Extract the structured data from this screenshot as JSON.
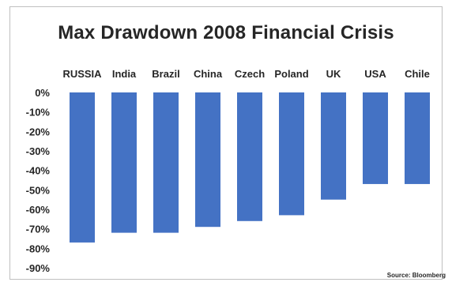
{
  "chart_data": {
    "type": "bar",
    "title": "Max Drawdown 2008 Financial Crisis",
    "categories": [
      "RUSSIA",
      "India",
      "Brazil",
      "China",
      "Czech",
      "Poland",
      "UK",
      "USA",
      "Chile"
    ],
    "values": [
      -77,
      -72,
      -72,
      -69,
      -66,
      -63,
      -55,
      -47,
      -47
    ],
    "yticks": [
      "0%",
      "-10%",
      "-20%",
      "-30%",
      "-40%",
      "-50%",
      "-60%",
      "-70%",
      "-80%",
      "-90%"
    ],
    "ylim": [
      -90,
      0
    ],
    "xlabel": "",
    "ylabel": "",
    "grid": false,
    "legend": "none",
    "bar_color": "#4472c4",
    "source": "Source: Bloomberg"
  }
}
